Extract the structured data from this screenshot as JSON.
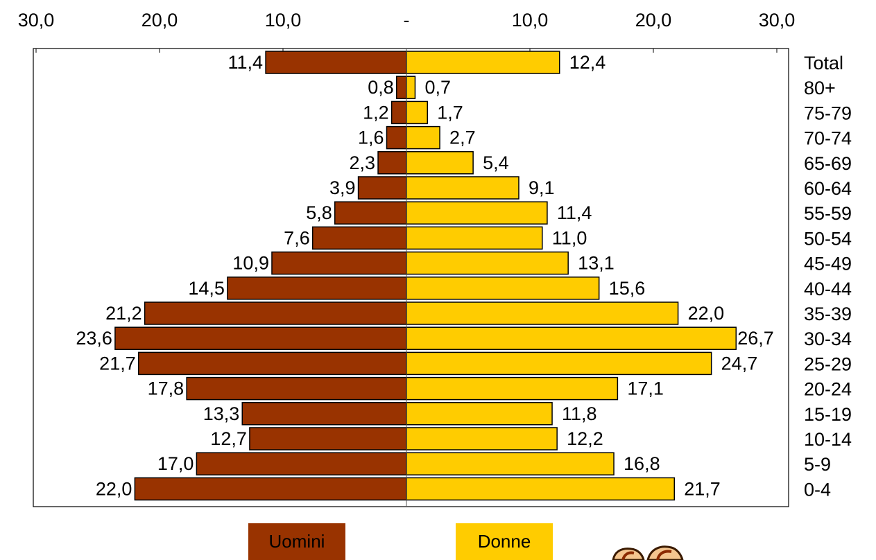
{
  "chart_data": {
    "type": "bar",
    "orientation": "horizontal",
    "layout": "population-pyramid",
    "top_tick_labels": [
      "30,0",
      "20,0",
      "10,0",
      "-",
      "10,0",
      "20,0",
      "30,0"
    ],
    "xlim": [
      -30,
      30
    ],
    "categories": [
      "Total",
      "80+",
      "75-79",
      "70-74",
      "65-69",
      "60-64",
      "55-59",
      "50-54",
      "45-49",
      "40-44",
      "35-39",
      "30-34",
      "25-29",
      "20-24",
      "15-19",
      "10-14",
      "5-9",
      "0-4"
    ],
    "series": [
      {
        "name": "Uomini",
        "color": "#993300",
        "values": [
          11.4,
          0.8,
          1.2,
          1.6,
          2.3,
          3.9,
          5.8,
          7.6,
          10.9,
          14.5,
          21.2,
          23.6,
          21.7,
          17.8,
          13.3,
          12.7,
          17.0,
          22.0
        ],
        "labels": [
          "11,4",
          "0,8",
          "1,2",
          "1,6",
          "2,3",
          "3,9",
          "5,8",
          "7,6",
          "10,9",
          "14,5",
          "21,2",
          "23,6",
          "21,7",
          "17,8",
          "13,3",
          "12,7",
          "17,0",
          "22,0"
        ]
      },
      {
        "name": "Donne",
        "color": "#FFCC00",
        "values": [
          12.4,
          0.7,
          1.7,
          2.7,
          5.4,
          9.1,
          11.4,
          11.0,
          13.1,
          15.6,
          22.0,
          26.7,
          24.7,
          17.1,
          11.8,
          12.2,
          16.8,
          21.7
        ],
        "labels": [
          "12,4",
          "0,7",
          "1,7",
          "2,7",
          "5,4",
          "9,1",
          "11,4",
          "11,0",
          "13,1",
          "15,6",
          "22,0",
          "26,7",
          "24,7",
          "17,1",
          "11,8",
          "12,2",
          "16,8",
          "21,7"
        ]
      }
    ],
    "legend_position": "bottom",
    "grid": false
  },
  "legend": {
    "men_label": "Uomini",
    "women_label": "Donne"
  }
}
